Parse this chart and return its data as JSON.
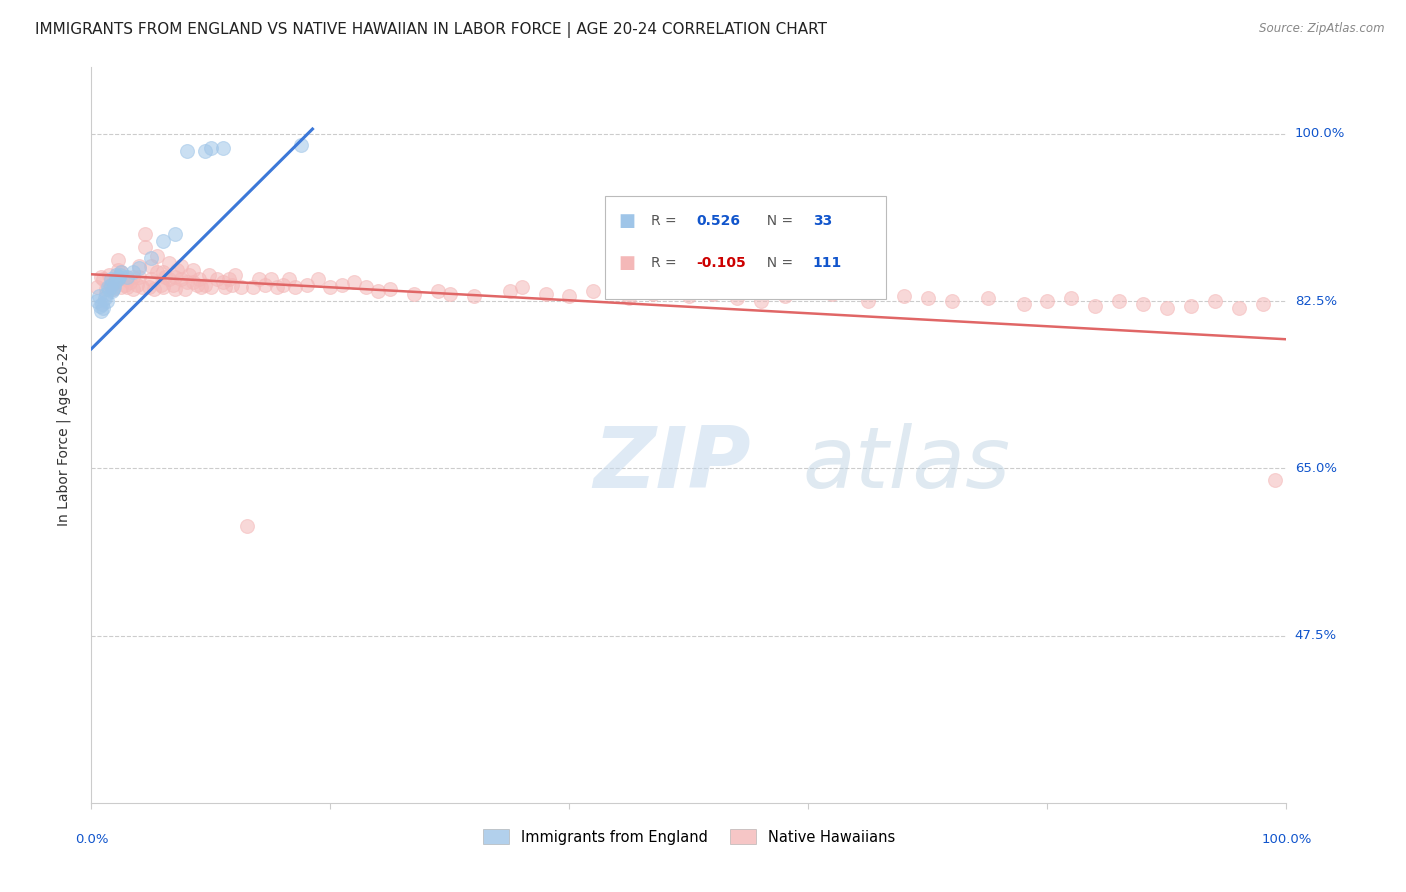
{
  "title": "IMMIGRANTS FROM ENGLAND VS NATIVE HAWAIIAN IN LABOR FORCE | AGE 20-24 CORRELATION CHART",
  "source": "Source: ZipAtlas.com",
  "ylabel": "In Labor Force | Age 20-24",
  "ytick_labels": [
    "100.0%",
    "82.5%",
    "65.0%",
    "47.5%"
  ],
  "ytick_values": [
    1.0,
    0.825,
    0.65,
    0.475
  ],
  "legend_blue_r": "R =  0.526",
  "legend_blue_n": "N = 33",
  "legend_pink_r": "R = -0.105",
  "legend_pink_n": "N = 111",
  "blue_color": "#9fc5e8",
  "pink_color": "#f4b8b8",
  "blue_line_color": "#3c78d8",
  "pink_line_color": "#e06666",
  "watermark_zip": "ZIP",
  "watermark_atlas": "atlas",
  "xlim": [
    0.0,
    1.0
  ],
  "ylim": [
    0.3,
    1.07
  ],
  "grid_color": "#cccccc",
  "title_fontsize": 11,
  "axis_label_fontsize": 10,
  "tick_fontsize": 9.5,
  "marker_size": 100,
  "marker_alpha": 0.55,
  "blue_trend_x": [
    0.0,
    0.185
  ],
  "blue_trend_y": [
    0.775,
    1.005
  ],
  "pink_trend_x": [
    0.0,
    1.0
  ],
  "pink_trend_y": [
    0.853,
    0.785
  ],
  "blue_x": [
    0.005,
    0.006,
    0.007,
    0.008,
    0.009,
    0.01,
    0.011,
    0.012,
    0.013,
    0.014,
    0.015,
    0.016,
    0.016,
    0.017,
    0.018,
    0.019,
    0.02,
    0.021,
    0.022,
    0.023,
    0.024,
    0.025,
    0.03,
    0.035,
    0.04,
    0.05,
    0.06,
    0.07,
    0.08,
    0.095,
    0.1,
    0.11,
    0.175
  ],
  "blue_y": [
    0.825,
    0.83,
    0.82,
    0.815,
    0.822,
    0.818,
    0.828,
    0.832,
    0.825,
    0.84,
    0.838,
    0.842,
    0.848,
    0.835,
    0.838,
    0.84,
    0.845,
    0.852,
    0.848,
    0.85,
    0.852,
    0.855,
    0.85,
    0.855,
    0.86,
    0.87,
    0.888,
    0.895,
    0.982,
    0.982,
    0.985,
    0.985,
    0.988
  ],
  "pink_x": [
    0.005,
    0.008,
    0.01,
    0.012,
    0.015,
    0.016,
    0.018,
    0.02,
    0.022,
    0.022,
    0.025,
    0.025,
    0.028,
    0.03,
    0.03,
    0.032,
    0.035,
    0.035,
    0.038,
    0.04,
    0.04,
    0.042,
    0.045,
    0.045,
    0.048,
    0.05,
    0.05,
    0.052,
    0.055,
    0.055,
    0.058,
    0.06,
    0.06,
    0.062,
    0.065,
    0.065,
    0.068,
    0.07,
    0.07,
    0.072,
    0.075,
    0.075,
    0.078,
    0.08,
    0.082,
    0.085,
    0.085,
    0.088,
    0.09,
    0.092,
    0.095,
    0.098,
    0.1,
    0.105,
    0.11,
    0.112,
    0.115,
    0.118,
    0.12,
    0.125,
    0.13,
    0.135,
    0.14,
    0.145,
    0.15,
    0.155,
    0.16,
    0.165,
    0.17,
    0.18,
    0.19,
    0.2,
    0.21,
    0.22,
    0.23,
    0.24,
    0.25,
    0.27,
    0.29,
    0.3,
    0.32,
    0.35,
    0.36,
    0.38,
    0.4,
    0.42,
    0.45,
    0.47,
    0.5,
    0.52,
    0.54,
    0.56,
    0.58,
    0.62,
    0.65,
    0.68,
    0.7,
    0.72,
    0.75,
    0.78,
    0.8,
    0.82,
    0.84,
    0.86,
    0.88,
    0.9,
    0.92,
    0.94,
    0.96,
    0.98,
    0.99
  ],
  "pink_y": [
    0.84,
    0.85,
    0.848,
    0.838,
    0.852,
    0.84,
    0.838,
    0.845,
    0.858,
    0.868,
    0.84,
    0.855,
    0.842,
    0.848,
    0.84,
    0.845,
    0.85,
    0.838,
    0.842,
    0.85,
    0.862,
    0.84,
    0.882,
    0.895,
    0.84,
    0.848,
    0.862,
    0.838,
    0.855,
    0.872,
    0.842,
    0.855,
    0.84,
    0.85,
    0.848,
    0.865,
    0.842,
    0.85,
    0.838,
    0.858,
    0.848,
    0.862,
    0.838,
    0.845,
    0.852,
    0.845,
    0.858,
    0.842,
    0.848,
    0.84,
    0.842,
    0.852,
    0.84,
    0.848,
    0.845,
    0.84,
    0.848,
    0.842,
    0.852,
    0.84,
    0.59,
    0.84,
    0.848,
    0.842,
    0.848,
    0.84,
    0.842,
    0.848,
    0.84,
    0.842,
    0.848,
    0.84,
    0.842,
    0.845,
    0.84,
    0.835,
    0.838,
    0.832,
    0.835,
    0.832,
    0.83,
    0.835,
    0.84,
    0.832,
    0.83,
    0.835,
    0.828,
    0.832,
    0.83,
    0.832,
    0.828,
    0.825,
    0.83,
    0.832,
    0.825,
    0.83,
    0.828,
    0.825,
    0.828,
    0.822,
    0.825,
    0.828,
    0.82,
    0.825,
    0.822,
    0.818,
    0.82,
    0.825,
    0.818,
    0.822,
    0.638
  ]
}
